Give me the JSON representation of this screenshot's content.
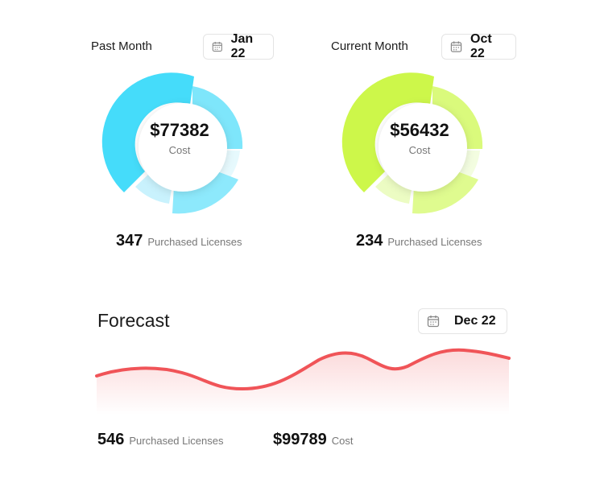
{
  "past": {
    "label": "Past Month",
    "date": "Jan 22",
    "cost": "$77382",
    "cost_caption": "Cost",
    "licenses": "347",
    "licenses_label": "Purchased Licenses",
    "color": "#3fd6f6"
  },
  "current": {
    "label": "Current Month",
    "date": "Oct 22",
    "cost": "$56432",
    "cost_caption": "Cost",
    "licenses": "234",
    "licenses_label": "Purchased Licenses",
    "color": "#c8f53c"
  },
  "forecast": {
    "title": "Forecast",
    "date": "Dec 22",
    "licenses": "546",
    "licenses_label": "Purchased Licenses",
    "cost": "$99789",
    "cost_caption": "Cost",
    "line_color": "#f05458"
  },
  "icons": {
    "calendar": "calendar-icon"
  }
}
